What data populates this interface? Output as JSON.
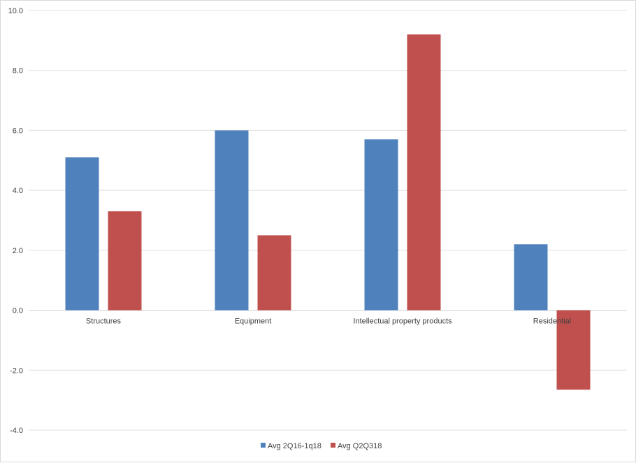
{
  "chart_data": {
    "type": "bar",
    "title": "",
    "xlabel": "",
    "ylabel": "",
    "categories": [
      "Structures",
      "Equipment",
      "Intellectual property products",
      "Residential"
    ],
    "series": [
      {
        "name": "Avg 2Q16-1q18",
        "values": [
          5.1,
          6.0,
          5.7,
          2.2
        ],
        "color": "#4f81bd"
      },
      {
        "name": "Avg Q2Q318",
        "values": [
          3.3,
          2.5,
          9.2,
          -2.65
        ],
        "color": "#c0504d"
      }
    ],
    "ylim": [
      -4.0,
      10.0
    ],
    "yticks": [
      "10.0",
      "8.0",
      "6.0",
      "4.0",
      "2.0",
      "0.0",
      "-2.0",
      "-4.0"
    ],
    "grid": true,
    "legend_position": "bottom"
  }
}
